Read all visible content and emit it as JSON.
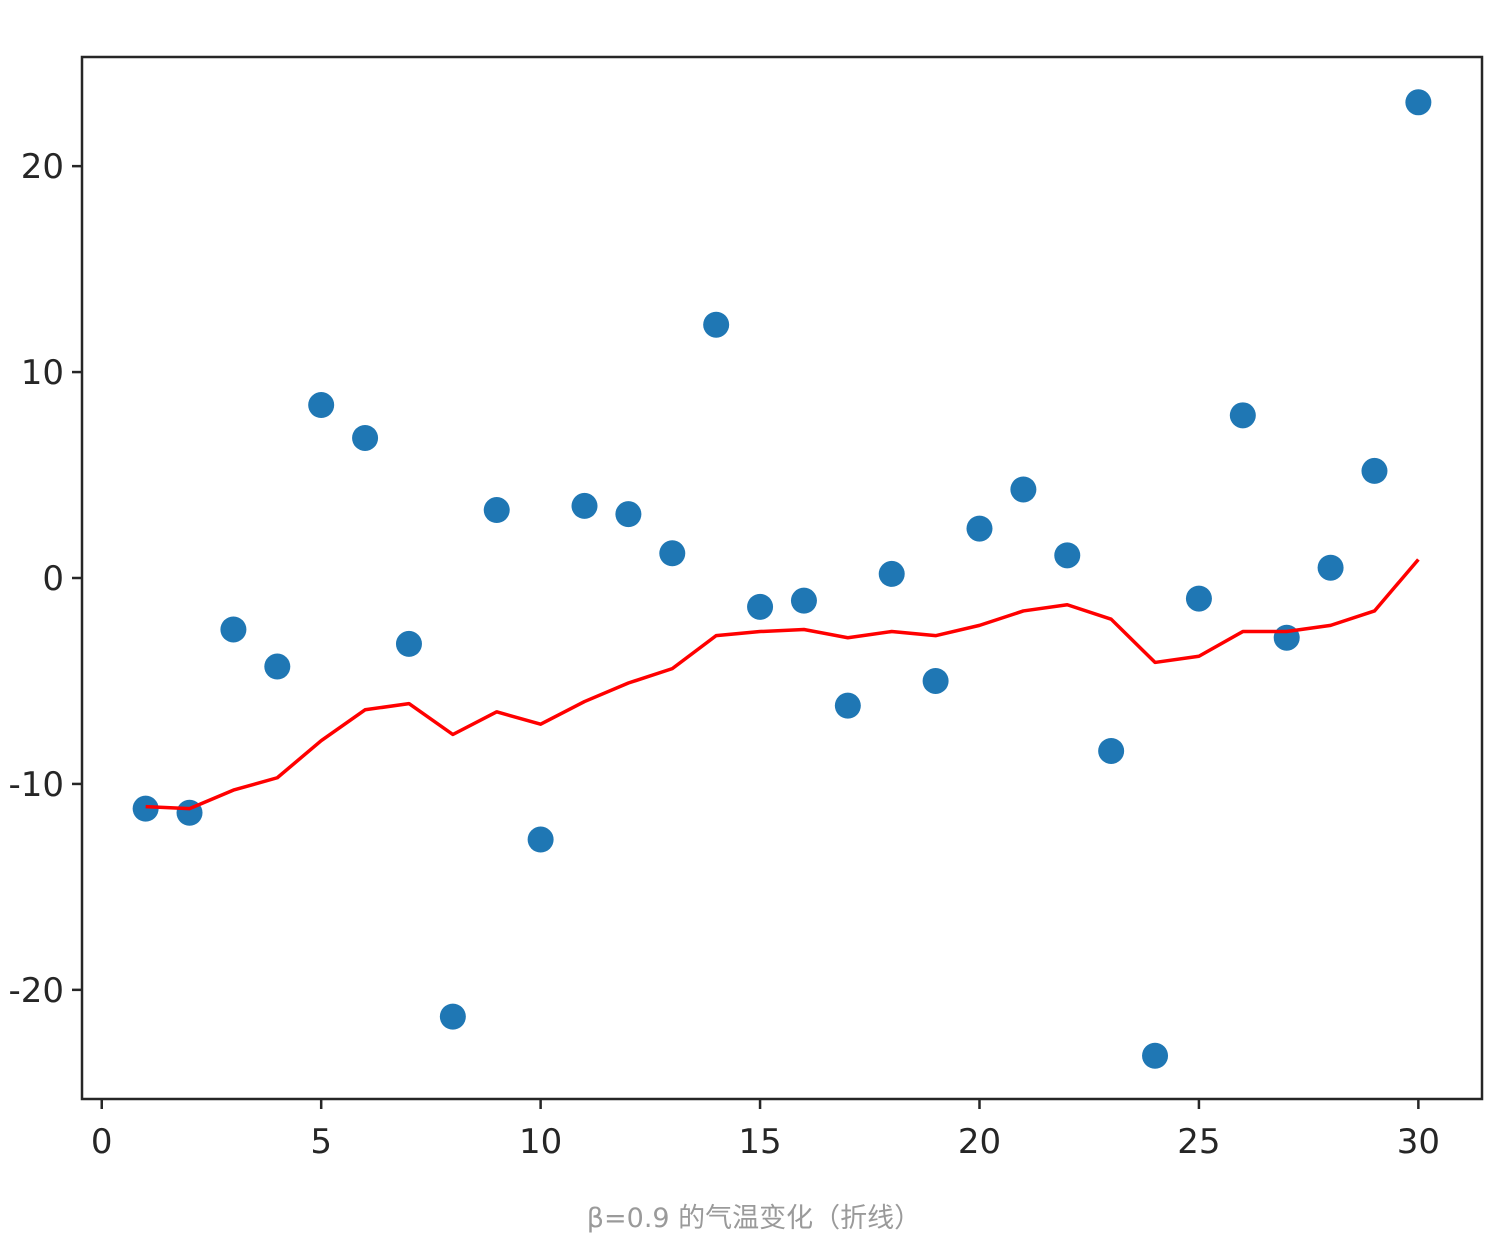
{
  "caption": "β=0.9 的气温变化（折线）",
  "chart_data": {
    "type": "scatter",
    "xlim": [
      -0.45,
      31.45
    ],
    "ylim": [
      -25.3,
      25.3
    ],
    "xticks": [
      0,
      5,
      10,
      15,
      20,
      25,
      30
    ],
    "xtick_labels": [
      "0",
      "5",
      "10",
      "15",
      "20",
      "25",
      "30"
    ],
    "yticks": [
      -20,
      -10,
      0,
      10,
      20
    ],
    "ytick_labels": [
      "-20",
      "-10",
      "0",
      "10",
      "20"
    ],
    "grid": false,
    "colors": {
      "points": "#1f77b4",
      "line": "#ff0000",
      "axes": "#262626"
    },
    "series": [
      {
        "type": "scatter",
        "x": [
          1,
          2,
          3,
          4,
          5,
          6,
          7,
          8,
          9,
          10,
          11,
          12,
          13,
          14,
          15,
          16,
          17,
          18,
          19,
          20,
          21,
          22,
          23,
          24,
          25,
          26,
          27,
          28,
          29,
          30
        ],
        "y": [
          -11.2,
          -11.4,
          -2.5,
          -4.3,
          8.4,
          6.8,
          -3.2,
          -21.3,
          3.3,
          -12.7,
          3.5,
          3.1,
          1.2,
          12.3,
          -1.4,
          -1.1,
          -6.2,
          0.2,
          -5.0,
          2.4,
          4.3,
          1.1,
          -8.4,
          -23.2,
          -1.0,
          7.9,
          -2.9,
          0.5,
          5.2,
          23.1
        ]
      },
      {
        "type": "line",
        "x": [
          1,
          2,
          3,
          4,
          5,
          6,
          7,
          8,
          9,
          10,
          11,
          12,
          13,
          14,
          15,
          16,
          17,
          18,
          19,
          20,
          21,
          22,
          23,
          24,
          25,
          26,
          27,
          28,
          29,
          30
        ],
        "y": [
          -11.1,
          -11.2,
          -10.3,
          -9.7,
          -7.9,
          -6.4,
          -6.1,
          -7.6,
          -6.5,
          -7.1,
          -6.0,
          -5.1,
          -4.4,
          -2.8,
          -2.6,
          -2.5,
          -2.9,
          -2.6,
          -2.8,
          -2.3,
          -1.6,
          -1.3,
          -2.0,
          -4.1,
          -3.8,
          -2.6,
          -2.6,
          -2.3,
          -1.6,
          0.9
        ]
      }
    ]
  }
}
